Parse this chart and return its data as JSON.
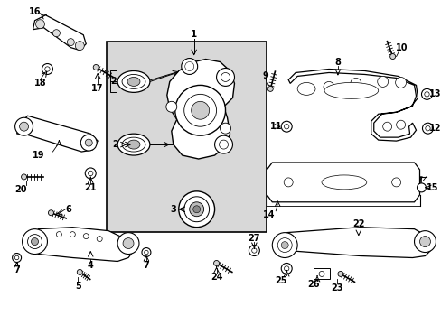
{
  "bg_color": "#ffffff",
  "line_color": "#000000",
  "box_fill": "#d8d8d8",
  "figsize": [
    4.89,
    3.6
  ],
  "dpi": 100
}
